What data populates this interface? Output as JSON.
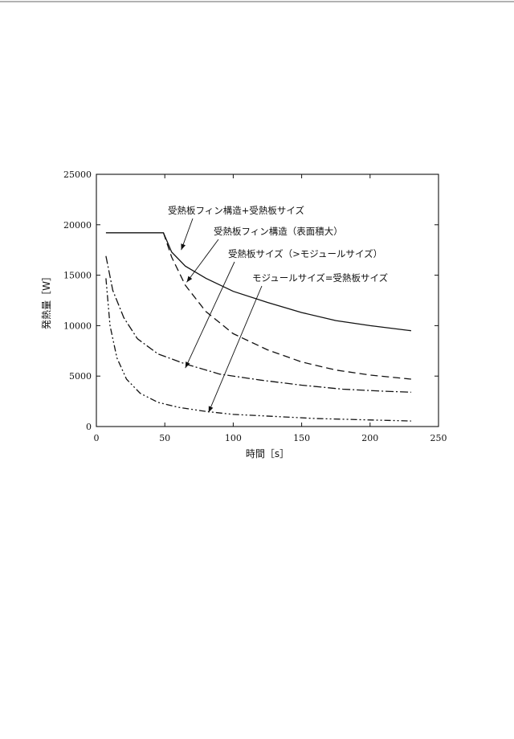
{
  "chart_data": {
    "type": "line",
    "title": "",
    "xlabel": "時間［s］",
    "ylabel": "発熱量［W］",
    "xlim": [
      0,
      250
    ],
    "ylim": [
      0,
      25000
    ],
    "xticks": [
      0,
      50,
      100,
      150,
      200,
      250
    ],
    "yticks": [
      0,
      5000,
      10000,
      15000,
      20000,
      25000
    ],
    "grid": false,
    "legend": "none (inline annotations with leader arrows)",
    "series": [
      {
        "name": "受熱板フィン構造+受熱板サイズ",
        "dash": "solid",
        "x": [
          7,
          20,
          40,
          49,
          55,
          65,
          80,
          100,
          125,
          150,
          175,
          200,
          230
        ],
        "y": [
          19200,
          19200,
          19200,
          19200,
          17300,
          15900,
          14700,
          13400,
          12300,
          11300,
          10500,
          10000,
          9500
        ],
        "annotation_at": [
          62,
          17500
        ]
      },
      {
        "name": "受熱板フィン構造（表面積大）",
        "dash": "dashed",
        "x": [
          49,
          55,
          65,
          80,
          100,
          125,
          150,
          175,
          200,
          230
        ],
        "y": [
          19200,
          16800,
          14000,
          11400,
          9200,
          7600,
          6400,
          5600,
          5100,
          4700
        ],
        "annotation_at": [
          66,
          14300
        ]
      },
      {
        "name": "受熱板サイズ（>モジュールサイズ）",
        "dash": "dash-dot",
        "x": [
          7,
          12,
          20,
          30,
          45,
          65,
          90,
          120,
          150,
          180,
          210,
          230
        ],
        "y": [
          16900,
          13500,
          10800,
          8700,
          7200,
          6200,
          5200,
          4600,
          4100,
          3700,
          3500,
          3400
        ],
        "annotation_at": [
          65,
          5800
        ]
      },
      {
        "name": "モジュールサイズ=受熱板サイズ",
        "dash": "dash-dot-dot",
        "x": [
          7,
          10,
          15,
          22,
          32,
          45,
          60,
          80,
          100,
          130,
          160,
          200,
          230
        ],
        "y": [
          14700,
          10000,
          6800,
          4700,
          3300,
          2400,
          1900,
          1500,
          1200,
          1000,
          800,
          650,
          550
        ],
        "annotation_at": [
          82,
          1400
        ]
      }
    ]
  }
}
